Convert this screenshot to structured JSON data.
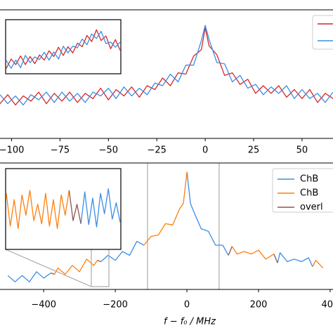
{
  "chart_data": [
    {
      "type": "line",
      "x": [
        -106,
        -102,
        -98,
        -94,
        -90,
        -86,
        -82,
        -78,
        -74,
        -70,
        -66,
        -62,
        -58,
        -54,
        -50,
        -46,
        -42,
        -38,
        -34,
        -30,
        -26,
        -22,
        -18,
        -14,
        -10,
        -6,
        -2,
        0,
        2,
        6,
        10,
        14,
        18,
        22,
        26,
        30,
        34,
        38,
        42,
        46,
        50,
        54,
        58,
        62,
        66
      ],
      "series": [
        {
          "color": "#d62728",
          "values": [
            27,
            34,
            26,
            33,
            29,
            36,
            27,
            35,
            29,
            36,
            28,
            35,
            31,
            39,
            30,
            38,
            33,
            40,
            32,
            41,
            38,
            47,
            41,
            51,
            50,
            64,
            69,
            86,
            72,
            65,
            49,
            51,
            42,
            46,
            35,
            41,
            35,
            41,
            32,
            38,
            31,
            38,
            28,
            35,
            31
          ]
        },
        {
          "color": "#3a8ee6",
          "values": [
            34,
            27,
            33,
            26,
            34,
            30,
            36,
            28,
            36,
            29,
            35,
            28,
            36,
            33,
            39,
            31,
            40,
            33,
            39,
            34,
            43,
            41,
            50,
            44,
            57,
            57,
            76,
            88,
            77,
            59,
            58,
            44,
            49,
            39,
            42,
            34,
            40,
            35,
            41,
            31,
            38,
            31,
            35,
            28,
            36
          ]
        }
      ],
      "xlim": [
        -106,
        66
      ],
      "ylim": [
        0,
        100
      ],
      "xticks": [
        {
          "value": -100,
          "label": "−100"
        },
        {
          "value": -75,
          "label": "−75"
        },
        {
          "value": -50,
          "label": "−50"
        },
        {
          "value": -25,
          "label": "−25"
        },
        0,
        25,
        50
      ]
    },
    {
      "type": "line",
      "x": [
        0,
        1,
        2,
        3,
        4,
        5,
        6,
        7,
        8,
        9,
        10,
        11,
        12,
        13,
        14,
        15,
        16,
        17,
        18,
        19,
        20,
        21,
        22,
        23,
        24
      ],
      "series": [
        {
          "color": "#d62728",
          "values": [
            8,
            26,
            15,
            32,
            15,
            31,
            17,
            34,
            24,
            42,
            31,
            49,
            33,
            50,
            38,
            57,
            50,
            72,
            60,
            83,
            62,
            71,
            46,
            64,
            43
          ]
        },
        {
          "color": "#3a8ee6",
          "values": [
            23,
            8,
            24,
            9,
            33,
            19,
            30,
            25,
            39,
            24,
            40,
            26,
            51,
            38,
            51,
            48,
            65,
            54,
            75,
            66,
            80,
            56,
            59,
            49,
            59
          ]
        }
      ],
      "xlim": [
        0,
        24
      ],
      "ylim": [
        0,
        100
      ]
    },
    {
      "type": "line",
      "x": [
        -500,
        -480,
        -460,
        -440,
        -420,
        -400,
        -380,
        -370,
        -360,
        -340,
        -320,
        -300,
        -280,
        -260,
        -250,
        -240,
        -220,
        -200,
        -180,
        -160,
        -140,
        -120,
        -100,
        -80,
        -60,
        -40,
        -20,
        -10,
        0,
        10,
        20,
        40,
        60,
        80,
        100,
        116,
        126,
        140,
        160,
        180,
        200,
        220,
        243,
        253,
        260,
        280,
        300,
        320,
        340,
        351,
        360,
        380
      ],
      "series": [
        {
          "name": "ChB",
          "color": "#3a8ee6",
          "values": [
            11,
            6,
            11,
            6,
            14,
            9,
            13,
            null,
            null,
            null,
            null,
            null,
            null,
            null,
            null,
            22,
            27,
            23,
            30,
            27,
            38,
            35,
            null,
            null,
            null,
            null,
            null,
            null,
            93,
            68,
            61,
            48,
            46,
            35,
            35,
            27,
            null,
            null,
            null,
            null,
            null,
            null,
            null,
            21,
            29,
            22,
            24,
            22,
            25,
            18,
            null,
            null
          ]
        },
        {
          "name": "ChB",
          "color": "#ff7f0e",
          "values": [
            null,
            null,
            null,
            null,
            null,
            null,
            null,
            12,
            17,
            12,
            19,
            14,
            24,
            19,
            23,
            null,
            null,
            null,
            null,
            null,
            null,
            35,
            42,
            43,
            52,
            51,
            64,
            68,
            93,
            null,
            null,
            null,
            null,
            null,
            null,
            null,
            34,
            28,
            30,
            28,
            31,
            24,
            28,
            null,
            null,
            null,
            null,
            null,
            null,
            18,
            23,
            17
          ]
        },
        {
          "name": "overl",
          "color": "#8c564b",
          "values": [
            null,
            null,
            null,
            null,
            null,
            null,
            13,
            12,
            null,
            null,
            null,
            null,
            null,
            null,
            23,
            22,
            null,
            null,
            null,
            null,
            null,
            null,
            null,
            null,
            null,
            null,
            null,
            null,
            null,
            null,
            null,
            null,
            null,
            null,
            null,
            27,
            34,
            null,
            null,
            null,
            null,
            null,
            28,
            21,
            null,
            null,
            null,
            null,
            null,
            null,
            null,
            null
          ]
        }
      ],
      "xlim": [
        -522,
        408
      ],
      "ylim": [
        0,
        100
      ],
      "xticks": [
        {
          "value": -400,
          "label": "−400"
        },
        {
          "value": -200,
          "label": "−200"
        },
        0,
        200,
        400
      ],
      "reference_lines": [
        -110,
        90
      ],
      "xlabel": "f − f₀ / MHz"
    },
    {
      "type": "line",
      "x": [
        0,
        1,
        2,
        3,
        4,
        5,
        6,
        7,
        8,
        9,
        10,
        11,
        12,
        13,
        14,
        15,
        16,
        17,
        18,
        19,
        20,
        21,
        22,
        23,
        24,
        25,
        26,
        27,
        28,
        29
      ],
      "series": [
        {
          "color": "#ff7f0e",
          "values": [
            70,
            28,
            62,
            25,
            68,
            42,
            74,
            35,
            56,
            31,
            70,
            28,
            62,
            25,
            68,
            42,
            74,
            null,
            null,
            null,
            null,
            null,
            null,
            null,
            null,
            null,
            null,
            null,
            null,
            null
          ]
        },
        {
          "color": "#8c564b",
          "values": [
            null,
            null,
            null,
            null,
            null,
            null,
            null,
            null,
            null,
            null,
            null,
            null,
            null,
            null,
            null,
            null,
            74,
            35,
            56,
            31,
            null,
            null,
            null,
            null,
            null,
            null,
            null,
            null,
            null,
            null
          ]
        },
        {
          "color": "#3a8ee6",
          "values": [
            null,
            null,
            null,
            null,
            null,
            null,
            null,
            null,
            null,
            null,
            null,
            null,
            null,
            null,
            null,
            null,
            null,
            null,
            null,
            31,
            72,
            30,
            64,
            27,
            70,
            44,
            76,
            37,
            58,
            33
          ]
        }
      ],
      "xlim": [
        0,
        29
      ],
      "ylim": [
        0,
        100
      ]
    }
  ]
}
